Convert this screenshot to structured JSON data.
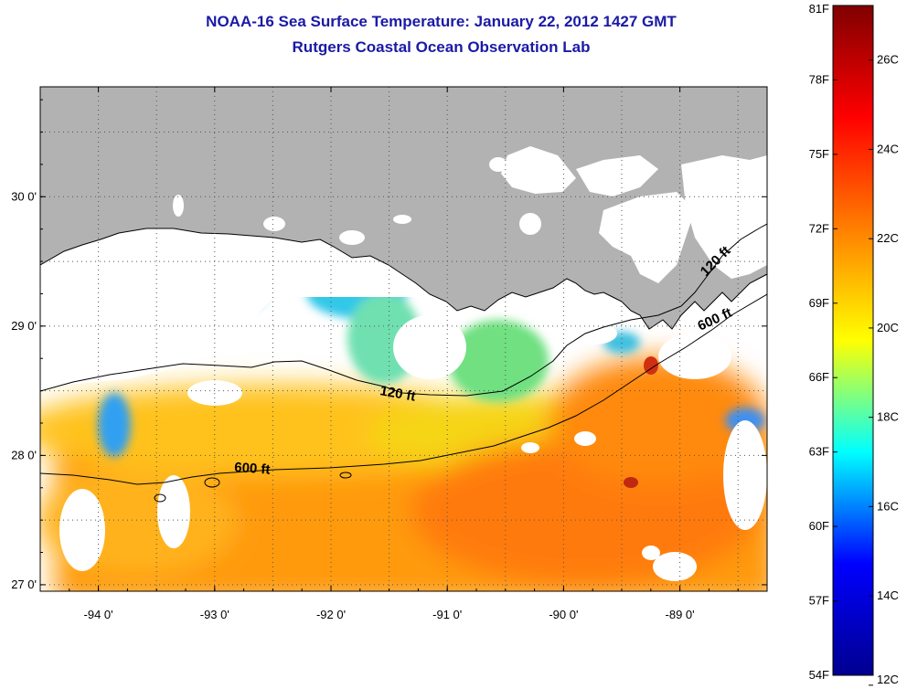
{
  "title": "NOAA-16 Sea Surface Temperature:  January 22, 2012 1427 GMT",
  "subtitle": "Rutgers Coastal Ocean Observation Lab",
  "map": {
    "lon_range": [
      -94.5,
      -88.25
    ],
    "lat_range": [
      26.95,
      30.85
    ],
    "lon_ticks": [
      {
        "value": -94,
        "label": "-94 0'"
      },
      {
        "value": -93,
        "label": "-93 0'"
      },
      {
        "value": -92,
        "label": "-92 0'"
      },
      {
        "value": -91,
        "label": "-91 0'"
      },
      {
        "value": -90,
        "label": "-90 0'"
      },
      {
        "value": -89,
        "label": "-89 0'"
      }
    ],
    "lat_ticks": [
      {
        "value": 30,
        "label": "30 0'"
      },
      {
        "value": 29,
        "label": "29 0'"
      },
      {
        "value": 28,
        "label": "28 0'"
      },
      {
        "value": 27,
        "label": "27 0'"
      }
    ],
    "contours": [
      {
        "label": "120 ft"
      },
      {
        "label": "600 ft"
      },
      {
        "label": "120 ft"
      },
      {
        "label": "600 ft"
      }
    ],
    "land_color": "#b2b2b2",
    "grid": true
  },
  "colorbar": {
    "min_f": 54,
    "max_f": 81,
    "f_ticks": [
      {
        "value": 81,
        "label": "81F"
      },
      {
        "value": 78,
        "label": "78F"
      },
      {
        "value": 75,
        "label": "75F"
      },
      {
        "value": 72,
        "label": "72F"
      },
      {
        "value": 69,
        "label": "69F"
      },
      {
        "value": 66,
        "label": "66F"
      },
      {
        "value": 63,
        "label": "63F"
      },
      {
        "value": 60,
        "label": "60F"
      },
      {
        "value": 57,
        "label": "57F"
      },
      {
        "value": 54,
        "label": "54F"
      }
    ],
    "c_ticks": [
      {
        "value": 26,
        "label": "26C"
      },
      {
        "value": 24,
        "label": "24C"
      },
      {
        "value": 22,
        "label": "22C"
      },
      {
        "value": 20,
        "label": "20C"
      },
      {
        "value": 18,
        "label": "18C"
      },
      {
        "value": 16,
        "label": "16C"
      },
      {
        "value": 14,
        "label": "14C"
      },
      {
        "value": 12,
        "label": "12C"
      }
    ],
    "colormap": [
      "#00008f",
      "#0000ff",
      "#00ffff",
      "#ffff00",
      "#ff7f00",
      "#ff0000",
      "#800000"
    ]
  }
}
